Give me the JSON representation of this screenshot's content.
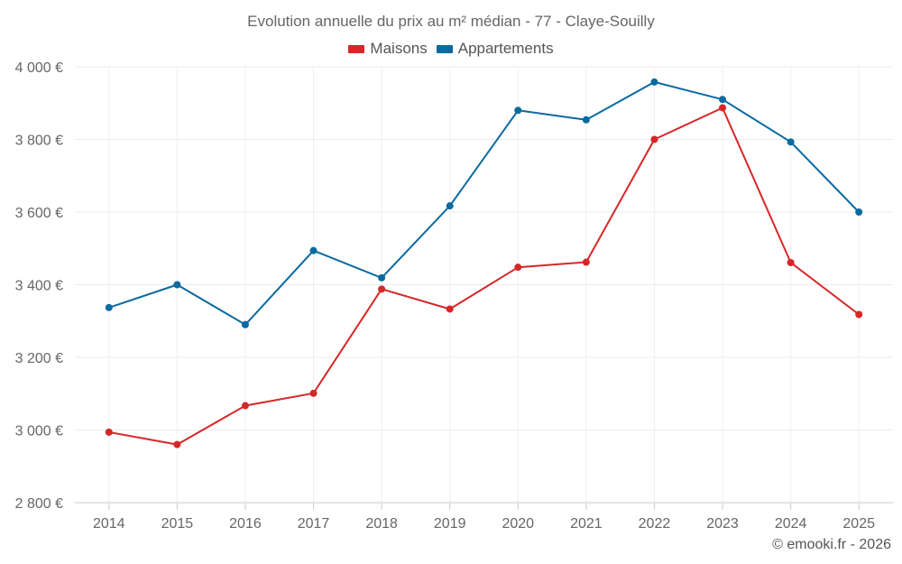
{
  "chart_data": {
    "type": "line",
    "title": "Evolution annuelle du prix au m² médian - 77 - Claye-Souilly",
    "categories": [
      "2014",
      "2015",
      "2016",
      "2017",
      "2018",
      "2019",
      "2020",
      "2021",
      "2022",
      "2023",
      "2024",
      "2025"
    ],
    "series": [
      {
        "name": "Maisons",
        "color": "#d62728",
        "values": [
          2994,
          2960,
          3067,
          3101,
          3388,
          3333,
          3448,
          3462,
          3800,
          3887,
          3461,
          3318
        ]
      },
      {
        "name": "Appartements",
        "color": "#0a6aa1",
        "values": [
          3337,
          3400,
          3290,
          3494,
          3419,
          3617,
          3880,
          3854,
          3958,
          3910,
          3793,
          3600
        ]
      }
    ],
    "ylim": [
      2800,
      4000
    ],
    "yticks": [
      2800,
      3000,
      3200,
      3400,
      3600,
      3800,
      4000
    ],
    "ytick_labels": [
      "2 800 €",
      "3 000 €",
      "3 200 €",
      "3 400 €",
      "3 600 €",
      "3 800 €",
      "4 000 €"
    ],
    "grid": true,
    "legend_position": "top-center",
    "xlabel": "",
    "ylabel": ""
  },
  "credit": "© emooki.fr - 2026"
}
